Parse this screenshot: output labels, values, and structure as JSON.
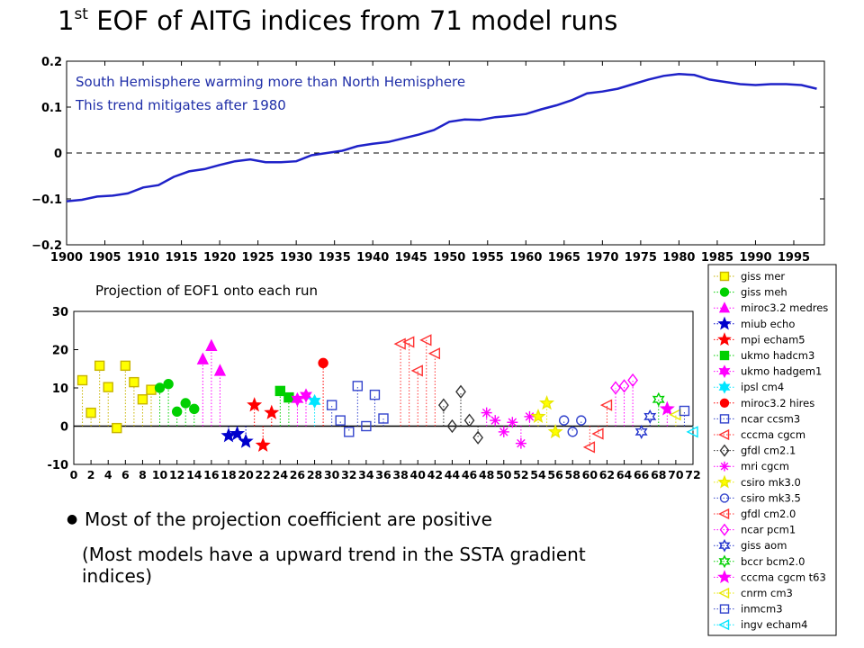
{
  "slide": {
    "title_prefix": "1",
    "title_sup": "st",
    "title_rest": " EOF of AITG indices from 71 model runs",
    "subtitle": "Projection of EOF1 onto each run",
    "bullet": "Most of the projection coefficient are positive",
    "bullet_detail": "(Most models have a upward trend in the SSTA gradient indices)"
  },
  "chart_data": [
    {
      "type": "line",
      "title": "",
      "xlabel": "",
      "ylabel": "",
      "xlim": [
        1900,
        1999
      ],
      "ylim": [
        -0.2,
        0.2
      ],
      "x_ticks": [
        1900,
        1905,
        1910,
        1915,
        1920,
        1925,
        1930,
        1935,
        1940,
        1945,
        1950,
        1955,
        1960,
        1965,
        1970,
        1975,
        1980,
        1985,
        1990,
        1995
      ],
      "y_ticks": [
        -0.2,
        -0.1,
        0,
        0.1,
        0.2
      ],
      "y_tick_labels": [
        "−0.2",
        "−0.1",
        "0",
        "0.1",
        "0.2"
      ],
      "zero_line": "dashed",
      "line_color": "#1f22c8",
      "annotations": [
        "South Hemisphere warming more than North Hemisphere",
        "This trend mitigates after 1980"
      ],
      "series": [
        {
          "x": [
            1900,
            1902,
            1904,
            1906,
            1908,
            1910,
            1912,
            1914,
            1916,
            1918,
            1920,
            1922,
            1924,
            1926,
            1928,
            1930,
            1932,
            1934,
            1936,
            1938,
            1940,
            1942,
            1944,
            1946,
            1948,
            1950,
            1952,
            1954,
            1956,
            1958,
            1960,
            1962,
            1964,
            1966,
            1968,
            1970,
            1972,
            1974,
            1976,
            1978,
            1980,
            1982,
            1984,
            1986,
            1988,
            1990,
            1992,
            1994,
            1996,
            1998
          ],
          "y": [
            -0.105,
            -0.102,
            -0.095,
            -0.093,
            -0.088,
            -0.075,
            -0.07,
            -0.052,
            -0.04,
            -0.035,
            -0.026,
            -0.018,
            -0.014,
            -0.02,
            -0.02,
            -0.018,
            -0.005,
            0.0,
            0.005,
            0.015,
            0.02,
            0.024,
            0.032,
            0.04,
            0.05,
            0.068,
            0.073,
            0.072,
            0.078,
            0.081,
            0.085,
            0.095,
            0.104,
            0.115,
            0.13,
            0.134,
            0.14,
            0.15,
            0.16,
            0.168,
            0.172,
            0.17,
            0.16,
            0.155,
            0.15,
            0.148,
            0.15,
            0.15,
            0.148,
            0.14
          ]
        }
      ]
    },
    {
      "type": "scatter",
      "style": "stem",
      "title": "",
      "xlabel": "",
      "ylabel": "",
      "xlim": [
        0,
        72
      ],
      "ylim": [
        -10,
        30
      ],
      "x_ticks": [
        0,
        2,
        4,
        6,
        8,
        10,
        12,
        14,
        16,
        18,
        20,
        22,
        24,
        26,
        28,
        30,
        32,
        34,
        36,
        38,
        40,
        42,
        44,
        46,
        48,
        50,
        52,
        54,
        56,
        58,
        60,
        62,
        64,
        66,
        68,
        70,
        72
      ],
      "x_tick_labels": [
        "0",
        "2",
        "4",
        "6",
        "8",
        "10",
        "12",
        "14",
        "16",
        "18",
        "20",
        "22",
        "24",
        "26",
        "28",
        "30",
        "32",
        "34",
        "36",
        "38",
        "40",
        "42",
        "44",
        "46",
        "48",
        "50",
        "52",
        "54",
        "56",
        "58",
        "60",
        "62",
        "64",
        "66",
        "68",
        "70",
        "72"
      ],
      "y_ticks": [
        -10,
        0,
        10,
        20,
        30
      ],
      "legend_position": "right",
      "series": [
        {
          "name": "giss mer",
          "color": "#c8b400",
          "fill": "#ffff00",
          "marker": "square",
          "x": [
            1,
            2,
            3,
            4,
            5,
            6,
            7,
            8,
            9
          ],
          "y": [
            12,
            3.5,
            15.8,
            10.2,
            -0.5,
            15.8,
            11.5,
            7,
            9.5
          ]
        },
        {
          "name": "giss meh",
          "color": "#00d000",
          "fill": "#00d000",
          "marker": "circle",
          "x": [
            10,
            11,
            12,
            13,
            14
          ],
          "y": [
            10,
            11,
            3.8,
            6,
            4.5
          ]
        },
        {
          "name": "miroc3.2 medres",
          "color": "#ff00ff",
          "fill": "#ff00ff",
          "marker": "triangle-up",
          "x": [
            15,
            16,
            17
          ],
          "y": [
            17.5,
            21,
            14.5
          ]
        },
        {
          "name": "miub echo",
          "color": "#0000cc",
          "fill": "#0000cc",
          "marker": "star5",
          "x": [
            18,
            19,
            20
          ],
          "y": [
            -2.5,
            -2,
            -4
          ]
        },
        {
          "name": "mpi echam5",
          "color": "#ff0000",
          "fill": "#ff0000",
          "marker": "star5",
          "x": [
            21,
            22,
            23
          ],
          "y": [
            5.5,
            -5,
            3.5
          ]
        },
        {
          "name": "ukmo hadcm3",
          "color": "#00d000",
          "fill": "#00d000",
          "marker": "square",
          "x": [
            24,
            25
          ],
          "y": [
            9.2,
            7.5
          ]
        },
        {
          "name": "ukmo hadgem1",
          "color": "#ff00ff",
          "fill": "#ff00ff",
          "marker": "star6",
          "x": [
            26,
            27
          ],
          "y": [
            7,
            8
          ]
        },
        {
          "name": "ipsl cm4",
          "color": "#00e5ff",
          "fill": "#00e5ff",
          "marker": "star6",
          "x": [
            28
          ],
          "y": [
            6.5
          ]
        },
        {
          "name": "miroc3.2 hires",
          "color": "#ff0000",
          "fill": "#ff0000",
          "marker": "circle",
          "x": [
            29
          ],
          "y": [
            16.5
          ]
        },
        {
          "name": "ncar ccsm3",
          "color": "#3344cc",
          "fill": "none",
          "marker": "square",
          "x": [
            30,
            31,
            32,
            33,
            34,
            35,
            36
          ],
          "y": [
            5.5,
            1.5,
            -1.5,
            10.5,
            0,
            8.2,
            2
          ]
        },
        {
          "name": "cccma cgcm",
          "color": "#ff3333",
          "fill": "none",
          "marker": "triangle-left",
          "x": [
            38,
            39,
            40,
            41,
            42
          ],
          "y": [
            21.5,
            22,
            14.5,
            22.5,
            19
          ]
        },
        {
          "name": "gfdl cm2.1",
          "color": "#333333",
          "fill": "none",
          "marker": "diamond",
          "x": [
            43,
            44,
            45,
            46,
            47
          ],
          "y": [
            5.5,
            0,
            9,
            1.5,
            -3
          ]
        },
        {
          "name": "mri cgcm",
          "color": "#ff00ff",
          "fill": "#ff00ff",
          "marker": "asterisk",
          "x": [
            48,
            49,
            50,
            51,
            52,
            53
          ],
          "y": [
            3.5,
            1.5,
            -1.5,
            1,
            -4.5,
            2.5
          ]
        },
        {
          "name": "csiro mk3.0",
          "color": "#e8e800",
          "fill": "#ffff00",
          "marker": "star5",
          "x": [
            54,
            55,
            56
          ],
          "y": [
            2.5,
            6,
            -1.5
          ]
        },
        {
          "name": "csiro mk3.5",
          "color": "#3344cc",
          "fill": "none",
          "marker": "circle",
          "x": [
            57,
            58,
            59
          ],
          "y": [
            1.5,
            -1.5,
            1.5
          ]
        },
        {
          "name": "gfdl cm2.0",
          "color": "#ff3333",
          "fill": "none",
          "marker": "triangle-left",
          "x": [
            60,
            61,
            62
          ],
          "y": [
            -5.5,
            -2,
            5.5
          ]
        },
        {
          "name": "ncar pcm1",
          "color": "#ff00ff",
          "fill": "none",
          "marker": "diamond",
          "x": [
            63,
            64,
            65
          ],
          "y": [
            10,
            10.5,
            12
          ]
        },
        {
          "name": "giss aom",
          "color": "#2233cc",
          "fill": "none",
          "marker": "star6",
          "x": [
            66,
            67
          ],
          "y": [
            -1.5,
            2.5
          ]
        },
        {
          "name": "bccr bcm2.0",
          "color": "#00d000",
          "fill": "none",
          "marker": "star6",
          "x": [
            68
          ],
          "y": [
            7
          ]
        },
        {
          "name": "cccma cgcm t63",
          "color": "#ff00ff",
          "fill": "#ff00ff",
          "marker": "star5",
          "x": [
            69
          ],
          "y": [
            4.5
          ]
        },
        {
          "name": "cnrm cm3",
          "color": "#e8e800",
          "fill": "none",
          "marker": "triangle-left",
          "x": [
            70
          ],
          "y": [
            3
          ]
        },
        {
          "name": "inmcm3",
          "color": "#3344cc",
          "fill": "none",
          "marker": "square",
          "x": [
            71
          ],
          "y": [
            4
          ]
        },
        {
          "name": "ingv echam4",
          "color": "#00e5ff",
          "fill": "none",
          "marker": "triangle-left",
          "x": [
            72
          ],
          "y": [
            -1.5
          ]
        }
      ]
    }
  ]
}
